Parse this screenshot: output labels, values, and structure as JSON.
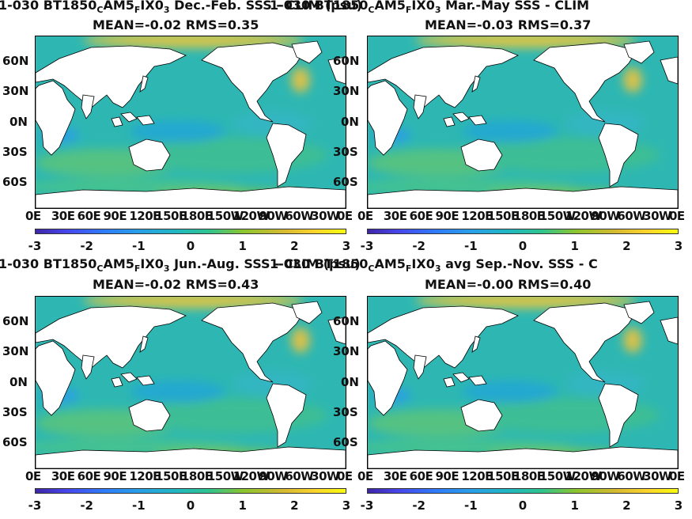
{
  "panels": [
    {
      "title_parts": [
        "1-030 BT1850",
        "C",
        "AM5",
        "F",
        "IX0",
        "3",
        "  Dec.-Feb. SSS - CLIM (psu)"
      ],
      "overlap_text": "1-030 BT1850",
      "stats": "MEAN=-0.02   RMS=0.35"
    },
    {
      "title_parts": [
        "1-030 BT1850",
        "C",
        "AM5",
        "F",
        "IX0",
        "3",
        "  Mar.-May SSS - CLIM"
      ],
      "overlap_text": "",
      "stats": "MEAN=-0.03   RMS=0.37"
    },
    {
      "title_parts": [
        "1-030 BT1850",
        "C",
        "AM5",
        "F",
        "IX0",
        "3",
        "  Jun.-Aug. SSS - CLIM (psu)"
      ],
      "overlap_text": "1-030 BT1850",
      "stats": "MEAN=-0.02   RMS=0.43"
    },
    {
      "title_parts": [
        "1-030 BT1850",
        "C",
        "AM5",
        "F",
        "IX0",
        "3",
        " avg Sep.-Nov. SSS - C"
      ],
      "overlap_text": "",
      "stats": "MEAN=-0.00   RMS=0.40"
    }
  ],
  "lat_labels": [
    "60N",
    "30N",
    "0N",
    "30S",
    "60S"
  ],
  "lon_labels": [
    "0E",
    "30E",
    "60E",
    "90E",
    "120E",
    "150E",
    "180E",
    "150W",
    "120W",
    "90W",
    "60W",
    "30W",
    "0E"
  ],
  "colorbar": {
    "ticks": [
      "-3",
      "-2",
      "-1",
      "0",
      "1",
      "2",
      "3"
    ],
    "range": [
      -3,
      3
    ],
    "colors": [
      "#3e26a8",
      "#2f7cfa",
      "#20b7c3",
      "#8cc52f",
      "#fbd42c",
      "#f9fb0e"
    ]
  }
}
